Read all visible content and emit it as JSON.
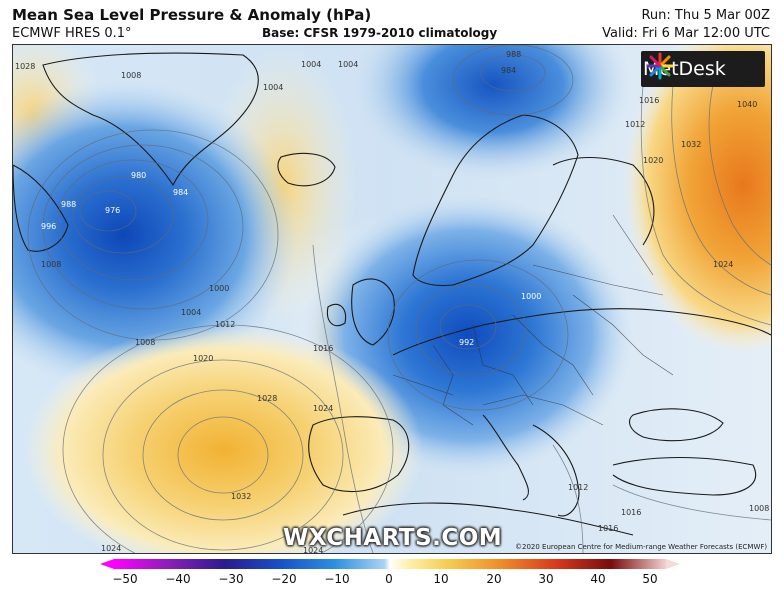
{
  "header": {
    "title": "Mean Sea Level Pressure & Anomaly (hPa)",
    "model": "ECMWF HRES 0.1°",
    "base": "Base: CFSR 1979-2010 climatology",
    "run": "Run: Thu 5 Mar 00Z",
    "valid": "Valid: Fri 6 Mar 12:00 UTC"
  },
  "logo": {
    "text": "MetDesk",
    "icon": "metdesk-burst-icon"
  },
  "watermark": "WXCHARTS.COM",
  "copyright": "©2020 European Centre for Medium-range Weather Forecasts (ECMWF)",
  "isobar_labels": [
    "1028",
    "1008",
    "1004",
    "1004",
    "1004",
    "988",
    "984",
    "1012",
    "1016",
    "1020",
    "1032",
    "1040",
    "980",
    "976",
    "984",
    "988",
    "996",
    "1008",
    "1000",
    "1004",
    "1012",
    "1008",
    "1020",
    "1016",
    "1028",
    "1024",
    "1032",
    "1024",
    "1000",
    "992",
    "1012",
    "1024",
    "1016",
    "1016",
    "1008",
    "1024"
  ],
  "colorbar": {
    "ticks": [
      "−50",
      "−40",
      "−30",
      "−20",
      "−10",
      "0",
      "10",
      "20",
      "30",
      "40",
      "50"
    ],
    "min": -50,
    "max": 50,
    "colors": [
      "#ff00ff",
      "#2b1b8f",
      "#2e8fe0",
      "#ffffff",
      "#f6cf52",
      "#d83a1c",
      "#7a0c0c",
      "#f3d0d0"
    ]
  }
}
